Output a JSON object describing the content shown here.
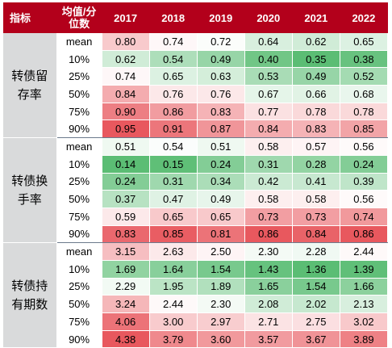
{
  "table": {
    "header": {
      "indicator": "指标",
      "stat": "均值/分位数",
      "years": [
        "2017",
        "2018",
        "2019",
        "2020",
        "2021",
        "2022"
      ]
    },
    "groups": [
      {
        "label": "转债留存率",
        "rows": [
          {
            "stat": "mean",
            "values": [
              "0.80",
              "0.74",
              "0.72",
              "0.64",
              "0.62",
              "0.65"
            ]
          },
          {
            "stat": "10%",
            "values": [
              "0.62",
              "0.54",
              "0.49",
              "0.40",
              "0.35",
              "0.38"
            ]
          },
          {
            "stat": "25%",
            "values": [
              "0.74",
              "0.65",
              "0.63",
              "0.53",
              "0.49",
              "0.52"
            ]
          },
          {
            "stat": "50%",
            "values": [
              "0.84",
              "0.76",
              "0.76",
              "0.67",
              "0.66",
              "0.68"
            ]
          },
          {
            "stat": "75%",
            "values": [
              "0.90",
              "0.86",
              "0.83",
              "0.77",
              "0.78",
              "0.78"
            ]
          },
          {
            "stat": "90%",
            "values": [
              "0.95",
              "0.91",
              "0.87",
              "0.84",
              "0.83",
              "0.85"
            ]
          }
        ]
      },
      {
        "label": "转债换手率",
        "rows": [
          {
            "stat": "mean",
            "values": [
              "0.51",
              "0.54",
              "0.51",
              "0.58",
              "0.57",
              "0.56"
            ]
          },
          {
            "stat": "10%",
            "values": [
              "0.14",
              "0.15",
              "0.24",
              "0.31",
              "0.28",
              "0.24"
            ]
          },
          {
            "stat": "25%",
            "values": [
              "0.24",
              "0.31",
              "0.34",
              "0.42",
              "0.41",
              "0.39"
            ]
          },
          {
            "stat": "50%",
            "values": [
              "0.37",
              "0.47",
              "0.49",
              "0.58",
              "0.58",
              "0.56"
            ]
          },
          {
            "stat": "75%",
            "values": [
              "0.59",
              "0.65",
              "0.65",
              "0.73",
              "0.73",
              "0.74"
            ]
          },
          {
            "stat": "90%",
            "values": [
              "0.83",
              "0.85",
              "0.81",
              "0.86",
              "0.84",
              "0.86"
            ]
          }
        ]
      },
      {
        "label": "转债持有期数",
        "rows": [
          {
            "stat": "mean",
            "values": [
              "3.15",
              "2.63",
              "2.50",
              "2.30",
              "2.28",
              "2.44"
            ]
          },
          {
            "stat": "10%",
            "values": [
              "1.69",
              "1.64",
              "1.54",
              "1.43",
              "1.36",
              "1.39"
            ]
          },
          {
            "stat": "25%",
            "values": [
              "2.29",
              "1.95",
              "1.89",
              "1.65",
              "1.54",
              "1.66"
            ]
          },
          {
            "stat": "50%",
            "values": [
              "3.24",
              "2.44",
              "2.30",
              "2.08",
              "2.02",
              "2.13"
            ]
          },
          {
            "stat": "75%",
            "values": [
              "4.06",
              "3.00",
              "2.97",
              "2.71",
              "2.75",
              "3.02"
            ]
          },
          {
            "stat": "90%",
            "values": [
              "4.38",
              "3.79",
              "3.60",
              "3.57",
              "3.67",
              "3.89"
            ]
          }
        ]
      }
    ],
    "colors": {
      "header_bg": "#b3001b",
      "indicator_bg": "#d9dadb",
      "scale_low": "#5bbd74",
      "scale_mid": "#ffffff",
      "scale_high": "#e8585e"
    }
  }
}
